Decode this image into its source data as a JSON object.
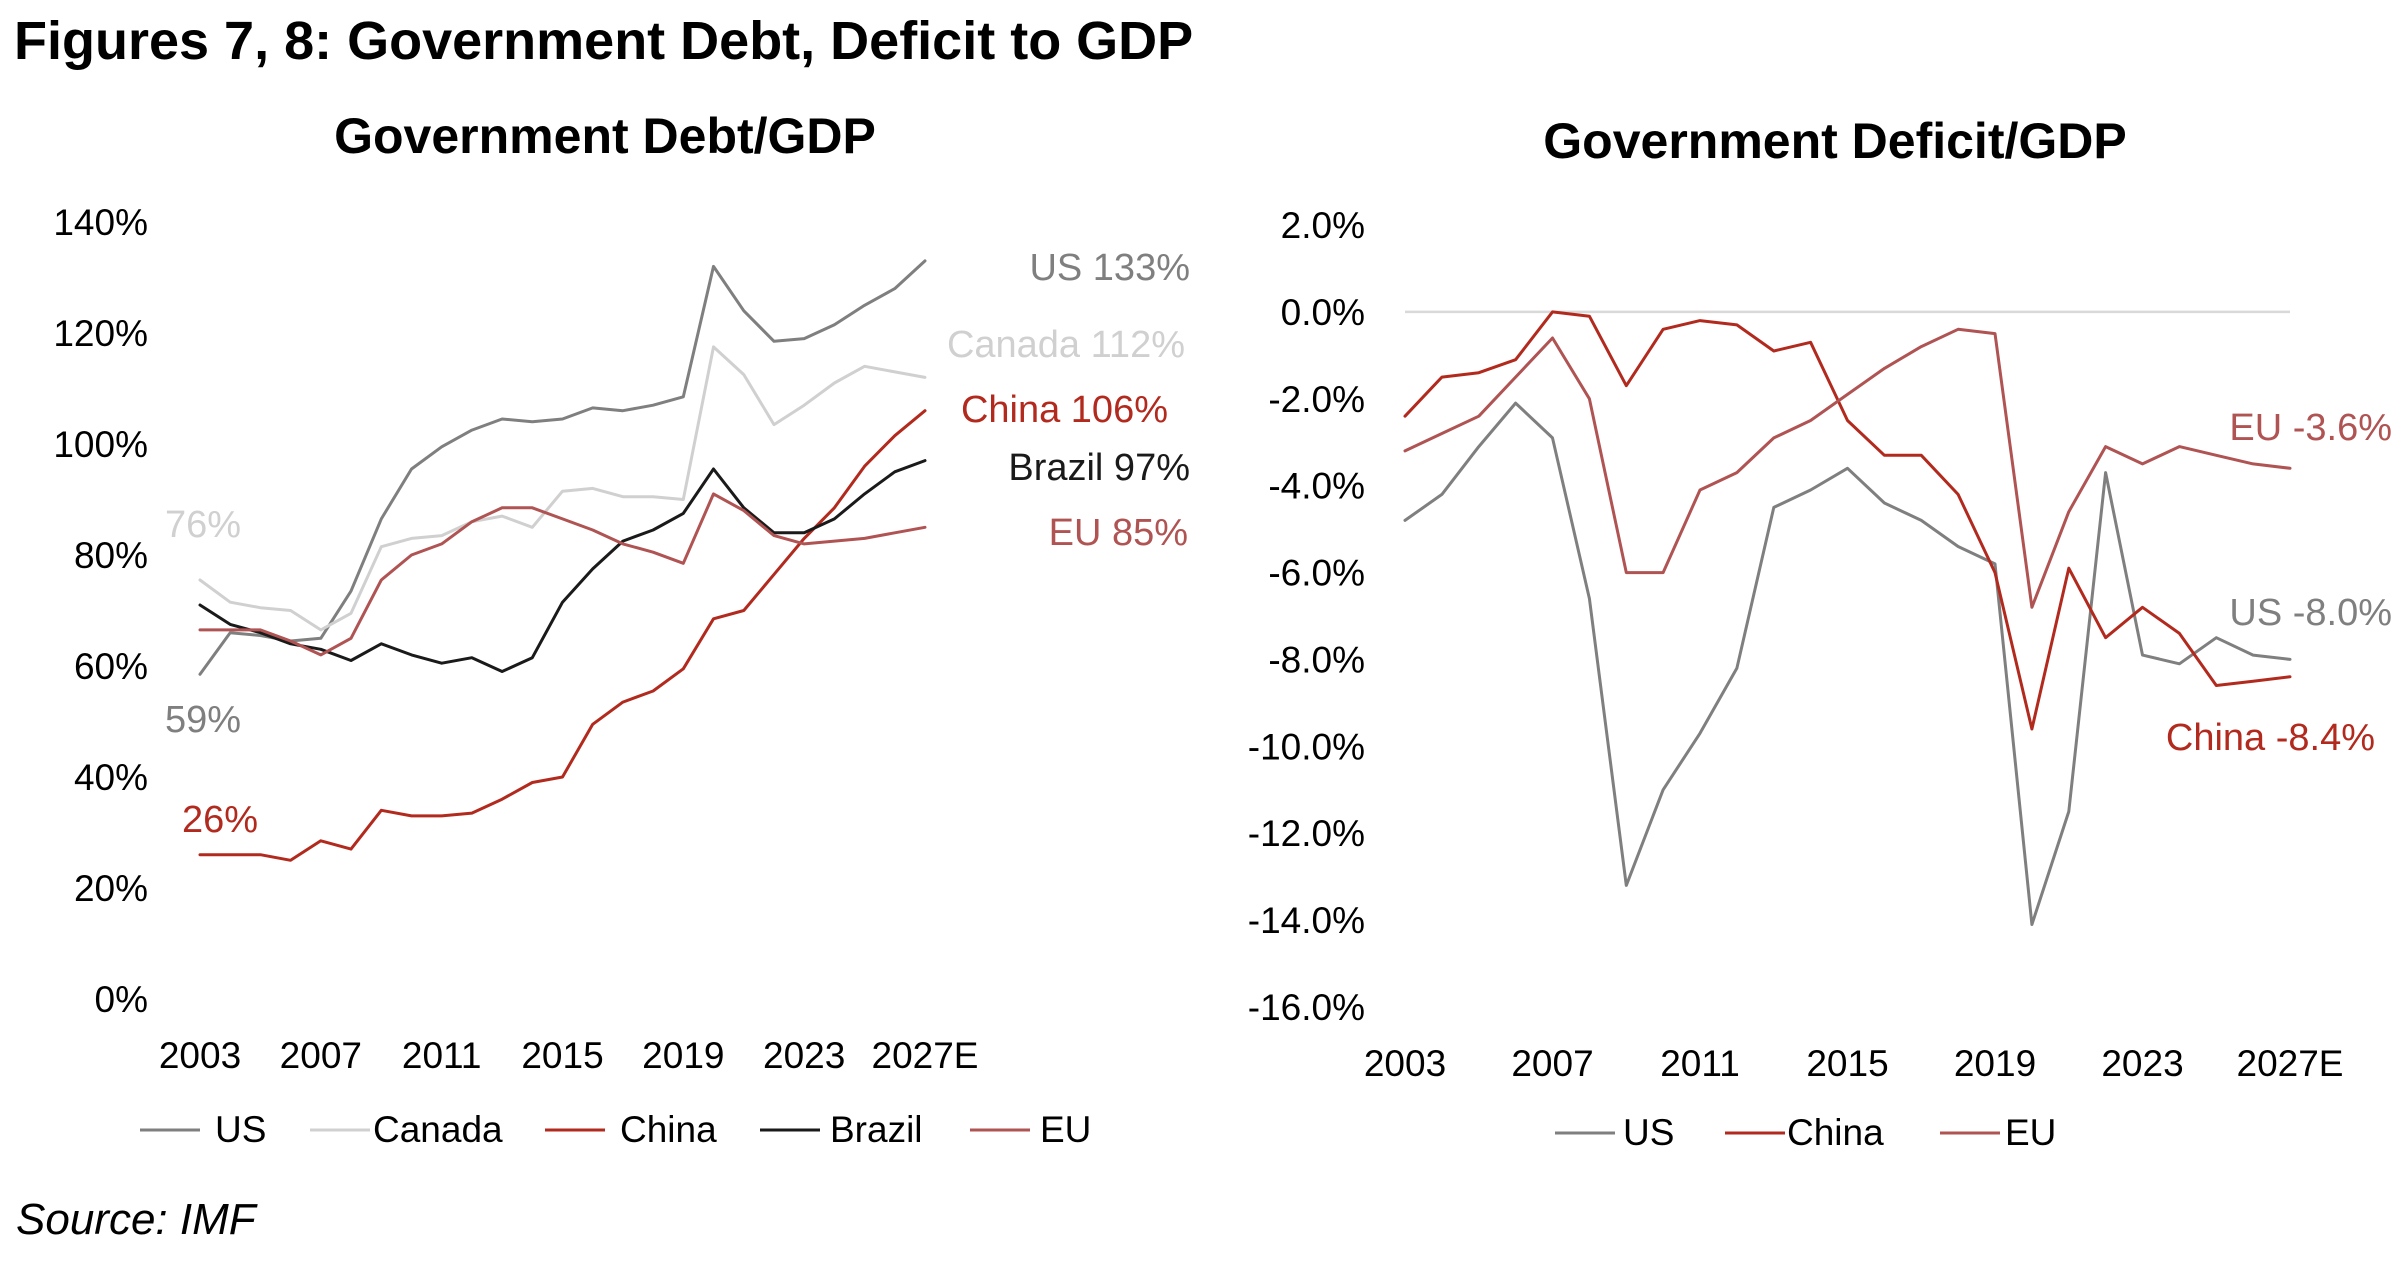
{
  "figure_title": "Figures 7, 8: Government Debt, Deficit to GDP",
  "source": "Source: IMF",
  "colors": {
    "US": "#7f7f7f",
    "Canada": "#d0d0d0",
    "China": "#b22a1e",
    "Brazil": "#1a1a1a",
    "EU": "#b05353"
  },
  "chart_data": [
    {
      "type": "line",
      "title": "Government Debt/GDP",
      "xlabel": "",
      "ylabel": "",
      "x_tick_labels": [
        "2003",
        "2007",
        "2011",
        "2015",
        "2019",
        "2023",
        "2027E"
      ],
      "y_tick_labels": [
        "140%",
        "120%",
        "100%",
        "80%",
        "60%",
        "40%",
        "20%",
        "0%"
      ],
      "ylim": [
        0,
        140
      ],
      "grid": false,
      "legend_position": "bottom",
      "x": [
        "2003",
        "2004",
        "2005",
        "2006",
        "2007",
        "2008",
        "2009",
        "2010",
        "2011",
        "2012",
        "2013",
        "2014",
        "2015",
        "2016",
        "2017",
        "2018",
        "2019",
        "2020",
        "2021",
        "2022",
        "2023",
        "2024",
        "2025",
        "2026",
        "2027E"
      ],
      "series": [
        {
          "name": "US",
          "values": [
            58.5,
            66,
            65.5,
            64.5,
            65,
            73.5,
            86.5,
            95.5,
            99.5,
            102.5,
            104.5,
            104,
            104.5,
            106.5,
            106,
            107,
            108.5,
            132,
            124,
            118.5,
            119,
            121.5,
            125,
            128,
            133
          ]
        },
        {
          "name": "Canada",
          "values": [
            75.5,
            71.5,
            70.5,
            70,
            66.5,
            69.5,
            81.5,
            83,
            83.5,
            86,
            87,
            85,
            91.5,
            92,
            90.5,
            90.5,
            90,
            117.5,
            112.5,
            103.5,
            107,
            111,
            114,
            113,
            112
          ]
        },
        {
          "name": "China",
          "values": [
            26,
            26,
            26,
            25,
            28.5,
            27,
            34,
            33,
            33,
            33.5,
            36,
            39,
            40,
            49.5,
            53.5,
            55.5,
            59.5,
            68.5,
            70,
            76.5,
            83,
            88.5,
            96,
            101.5,
            106
          ]
        },
        {
          "name": "Brazil",
          "values": [
            71,
            67.5,
            66,
            64,
            63,
            61,
            64,
            62,
            60.5,
            61.5,
            59,
            61.5,
            71.5,
            77.5,
            82.5,
            84.5,
            87.5,
            95.5,
            88.5,
            84,
            84,
            86.5,
            91,
            95,
            97
          ]
        },
        {
          "name": "EU",
          "values": [
            66.5,
            66.5,
            66.5,
            64.5,
            62,
            65,
            75.5,
            80,
            82,
            86,
            88.5,
            88.5,
            86.5,
            84.5,
            82,
            80.5,
            78.5,
            91,
            88,
            83.5,
            82,
            82.5,
            83,
            84,
            85
          ]
        }
      ],
      "annotations": [
        {
          "text": "US 133%",
          "series": "US"
        },
        {
          "text": "Canada 112%",
          "series": "Canada"
        },
        {
          "text": "China 106%",
          "series": "China"
        },
        {
          "text": "Brazil 97%",
          "series": "Brazil"
        },
        {
          "text": "EU 85%",
          "series": "EU"
        },
        {
          "text": "76%",
          "series": "Canada"
        },
        {
          "text": "59%",
          "series": "US"
        },
        {
          "text": "26%",
          "series": "China"
        }
      ]
    },
    {
      "type": "line",
      "title": "Government Deficit/GDP",
      "xlabel": "",
      "ylabel": "",
      "x_tick_labels": [
        "2003",
        "2007",
        "2011",
        "2015",
        "2019",
        "2023",
        "2027E"
      ],
      "y_tick_labels": [
        "2.0%",
        "0.0%",
        "-2.0%",
        "-4.0%",
        "-6.0%",
        "-8.0%",
        "-10.0%",
        "-12.0%",
        "-14.0%",
        "-16.0%"
      ],
      "ylim": [
        -16,
        2
      ],
      "grid": false,
      "zero_line": true,
      "legend_position": "bottom",
      "x": [
        "2003",
        "2004",
        "2005",
        "2006",
        "2007",
        "2008",
        "2009",
        "2010",
        "2011",
        "2012",
        "2013",
        "2014",
        "2015",
        "2016",
        "2017",
        "2018",
        "2019",
        "2020",
        "2021",
        "2022",
        "2023",
        "2024",
        "2025",
        "2026",
        "2027E"
      ],
      "series": [
        {
          "name": "US",
          "values": [
            -4.8,
            -4.2,
            -3.1,
            -2.1,
            -2.9,
            -6.6,
            -13.2,
            -11,
            -9.7,
            -8.2,
            -4.5,
            -4.1,
            -3.6,
            -4.4,
            -4.8,
            -5.4,
            -5.8,
            -14.1,
            -11.5,
            -3.7,
            -7.9,
            -8.1,
            -7.5,
            -7.9,
            -8.0
          ]
        },
        {
          "name": "China",
          "values": [
            -2.4,
            -1.5,
            -1.4,
            -1.1,
            0,
            -0.1,
            -1.7,
            -0.4,
            -0.2,
            -0.3,
            -0.9,
            -0.7,
            -2.5,
            -3.3,
            -3.3,
            -4.2,
            -6.0,
            -9.6,
            -5.9,
            -7.5,
            -6.8,
            -7.4,
            -8.6,
            -8.5,
            -8.4
          ]
        },
        {
          "name": "EU",
          "values": [
            -3.2,
            -2.8,
            -2.4,
            -1.5,
            -0.6,
            -2.0,
            -6.0,
            -6.0,
            -4.1,
            -3.7,
            -2.9,
            -2.5,
            -1.9,
            -1.3,
            -0.8,
            -0.4,
            -0.5,
            -6.8,
            -4.6,
            -3.1,
            -3.5,
            -3.1,
            -3.3,
            -3.5,
            -3.6
          ]
        }
      ],
      "annotations": [
        {
          "text": "EU -3.6%",
          "series": "EU"
        },
        {
          "text": "US -8.0%",
          "series": "US"
        },
        {
          "text": "China  -8.4%",
          "series": "China"
        }
      ]
    }
  ]
}
